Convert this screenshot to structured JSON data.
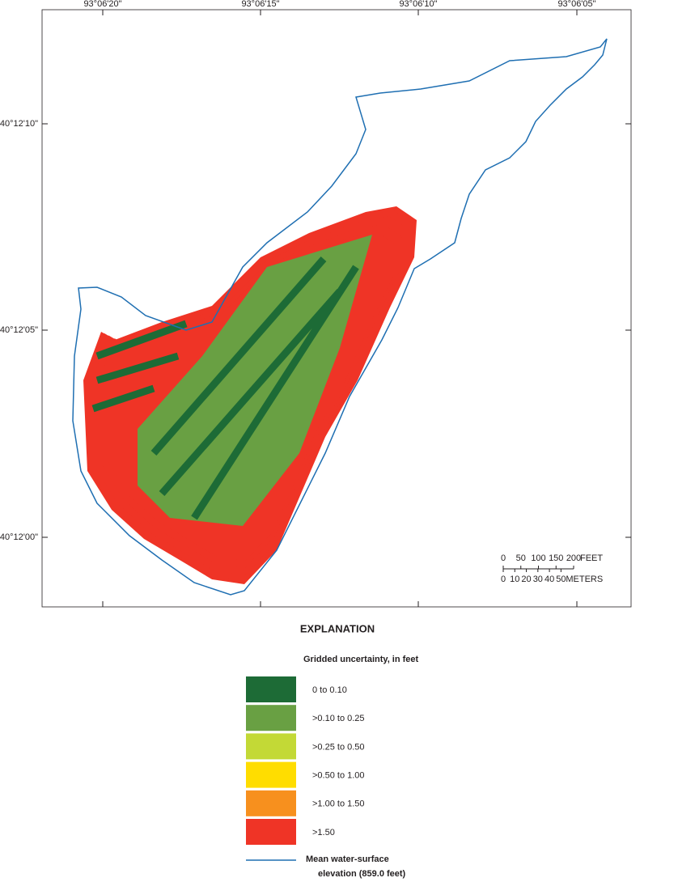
{
  "map": {
    "lon_labels": [
      "93°06'20\"",
      "93°06'15\"",
      "93°06'10\"",
      "93°06'05\""
    ],
    "lat_labels": [
      "40°12'10\"",
      "40°12'05\"",
      "40°12'00\""
    ],
    "scale": {
      "feet": {
        "ticks": [
          0,
          50,
          100,
          150,
          200
        ],
        "unit": "FEET"
      },
      "meters": {
        "ticks": [
          0,
          10,
          20,
          30,
          40,
          50
        ],
        "unit": "METERS"
      }
    },
    "legend": {
      "title": "EXPLANATION",
      "subtitle": "Gridded uncertainty, in feet",
      "items": [
        {
          "label": "0 to 0.10",
          "color": "#1d6b36"
        },
        {
          "label": ">0.10 to 0.25",
          "color": "#69a043"
        },
        {
          "label": ">0.25 to 0.50",
          "color": "#c3d936"
        },
        {
          "label": ">0.50 to 1.00",
          "color": "#ffdd00"
        },
        {
          "label": ">1.00 to 1.50",
          "color": "#f7901e"
        },
        {
          "label": ">1.50",
          "color": "#ef3426"
        }
      ],
      "line": {
        "label": [
          "Mean water-surface",
          "elevation (859.0 feet)"
        ],
        "color": "#1f6fb2"
      }
    }
  }
}
